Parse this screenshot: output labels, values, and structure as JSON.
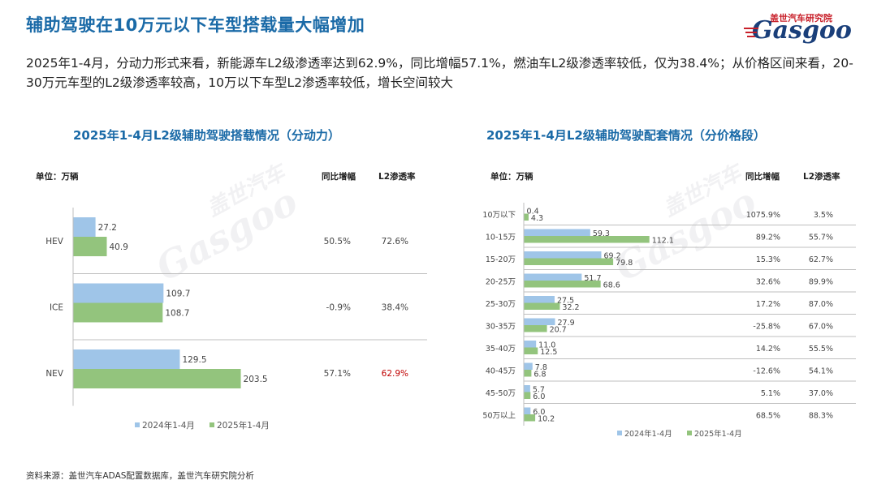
{
  "page": {
    "title": "辅助驾驶在10万元以下车型搭载量大幅增加",
    "summary": "2025年1-4月，分动力形式来看，新能源车L2级渗透率达到62.9%，同比增幅57.1%，燃油车L2级渗透率较低，仅为38.4%；从价格区间来看，20-30万元车型的L2级渗透率较高，10万以下车型L2渗透率较低，增长空间较大",
    "source": "资料来源：盖世汽车ADAS配置数据库，盖世汽车研究院分析",
    "logo_cn": "盖世汽车研究院",
    "logo_en": "Gasgoo",
    "watermark_cn": "盖世汽车",
    "watermark_en": "Gasgoo"
  },
  "colors": {
    "s2024": "#9fc5e8",
    "s2025": "#93c47d",
    "accent": "#1a6aa7",
    "highlight": "#c00000",
    "logo_red": "#c8202a",
    "logo_blue": "#1a3f7a"
  },
  "chart_data": [
    {
      "type": "bar",
      "orientation": "horizontal",
      "title": "2025年1-4月L2级辅助驾驶搭载情况（分动力）",
      "unit_label": "单位：万辆",
      "col_yoy": "同比增幅",
      "col_pen": "L2渗透率",
      "categories": [
        "HEV",
        "ICE",
        "NEV"
      ],
      "series": [
        {
          "name": "2024年1-4月",
          "values": [
            27.2,
            109.7,
            129.5
          ]
        },
        {
          "name": "2025年1-4月",
          "values": [
            40.9,
            108.7,
            203.5
          ]
        }
      ],
      "yoy": [
        "50.5%",
        "-0.9%",
        "57.1%"
      ],
      "penetration": [
        "72.6%",
        "38.4%",
        "62.9%"
      ],
      "highlight_penetration": [
        false,
        false,
        true
      ],
      "legend_position": "bottom"
    },
    {
      "type": "bar",
      "orientation": "horizontal",
      "title": "2025年1-4月L2级辅助驾驶配套情况（分价格段）",
      "unit_label": "单位：万辆",
      "col_yoy": "同比增幅",
      "col_pen": "L2渗透率",
      "categories": [
        "10万以下",
        "10-15万",
        "15-20万",
        "20-25万",
        "25-30万",
        "30-35万",
        "35-40万",
        "40-45万",
        "45-50万",
        "50万以上"
      ],
      "series": [
        {
          "name": "2024年1-4月",
          "values": [
            0.4,
            59.3,
            69.2,
            51.7,
            27.5,
            27.9,
            11.0,
            7.8,
            5.7,
            6.0
          ]
        },
        {
          "name": "2025年1-4月",
          "values": [
            4.3,
            112.1,
            79.8,
            68.6,
            32.2,
            20.7,
            12.5,
            6.8,
            6.0,
            10.2
          ]
        }
      ],
      "yoy": [
        "1075.9%",
        "89.2%",
        "15.3%",
        "32.6%",
        "17.2%",
        "-25.8%",
        "14.2%",
        "-12.6%",
        "5.1%",
        "68.5%"
      ],
      "penetration": [
        "3.5%",
        "55.7%",
        "62.7%",
        "89.9%",
        "87.0%",
        "67.0%",
        "55.5%",
        "54.1%",
        "37.0%",
        "88.3%"
      ],
      "legend_position": "bottom"
    }
  ]
}
